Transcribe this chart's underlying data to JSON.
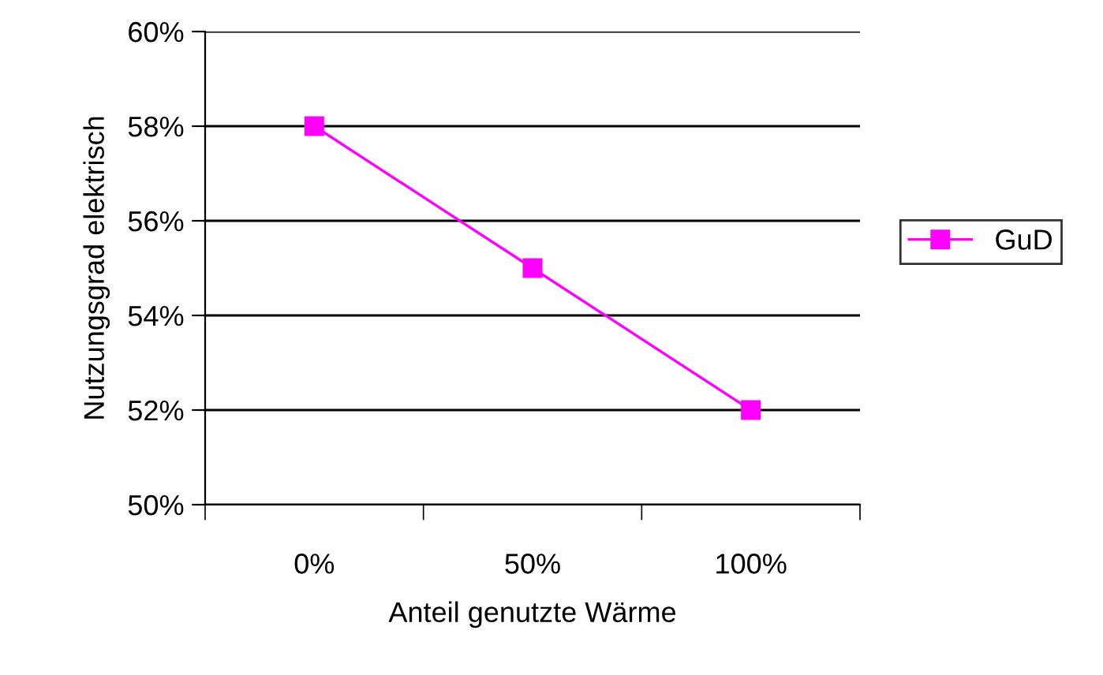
{
  "chart_data": {
    "type": "line",
    "xlabel": "Anteil genutzte Wärme",
    "ylabel": "Nutzungsgrad elektrisch",
    "categories": [
      "0%",
      "50%",
      "100%"
    ],
    "series": [
      {
        "name": "GuD",
        "color": "#ff00ff",
        "values": [
          58,
          55,
          52
        ]
      }
    ],
    "ylim": [
      50,
      60
    ],
    "yticks": [
      {
        "value": 50,
        "label": "50%"
      },
      {
        "value": 52,
        "label": "52%"
      },
      {
        "value": 54,
        "label": "54%"
      },
      {
        "value": 56,
        "label": "56%"
      },
      {
        "value": 58,
        "label": "58%"
      },
      {
        "value": 60,
        "label": "60%"
      }
    ],
    "grid": "y",
    "legend": "right",
    "marker": "square",
    "line_style": "solid"
  }
}
